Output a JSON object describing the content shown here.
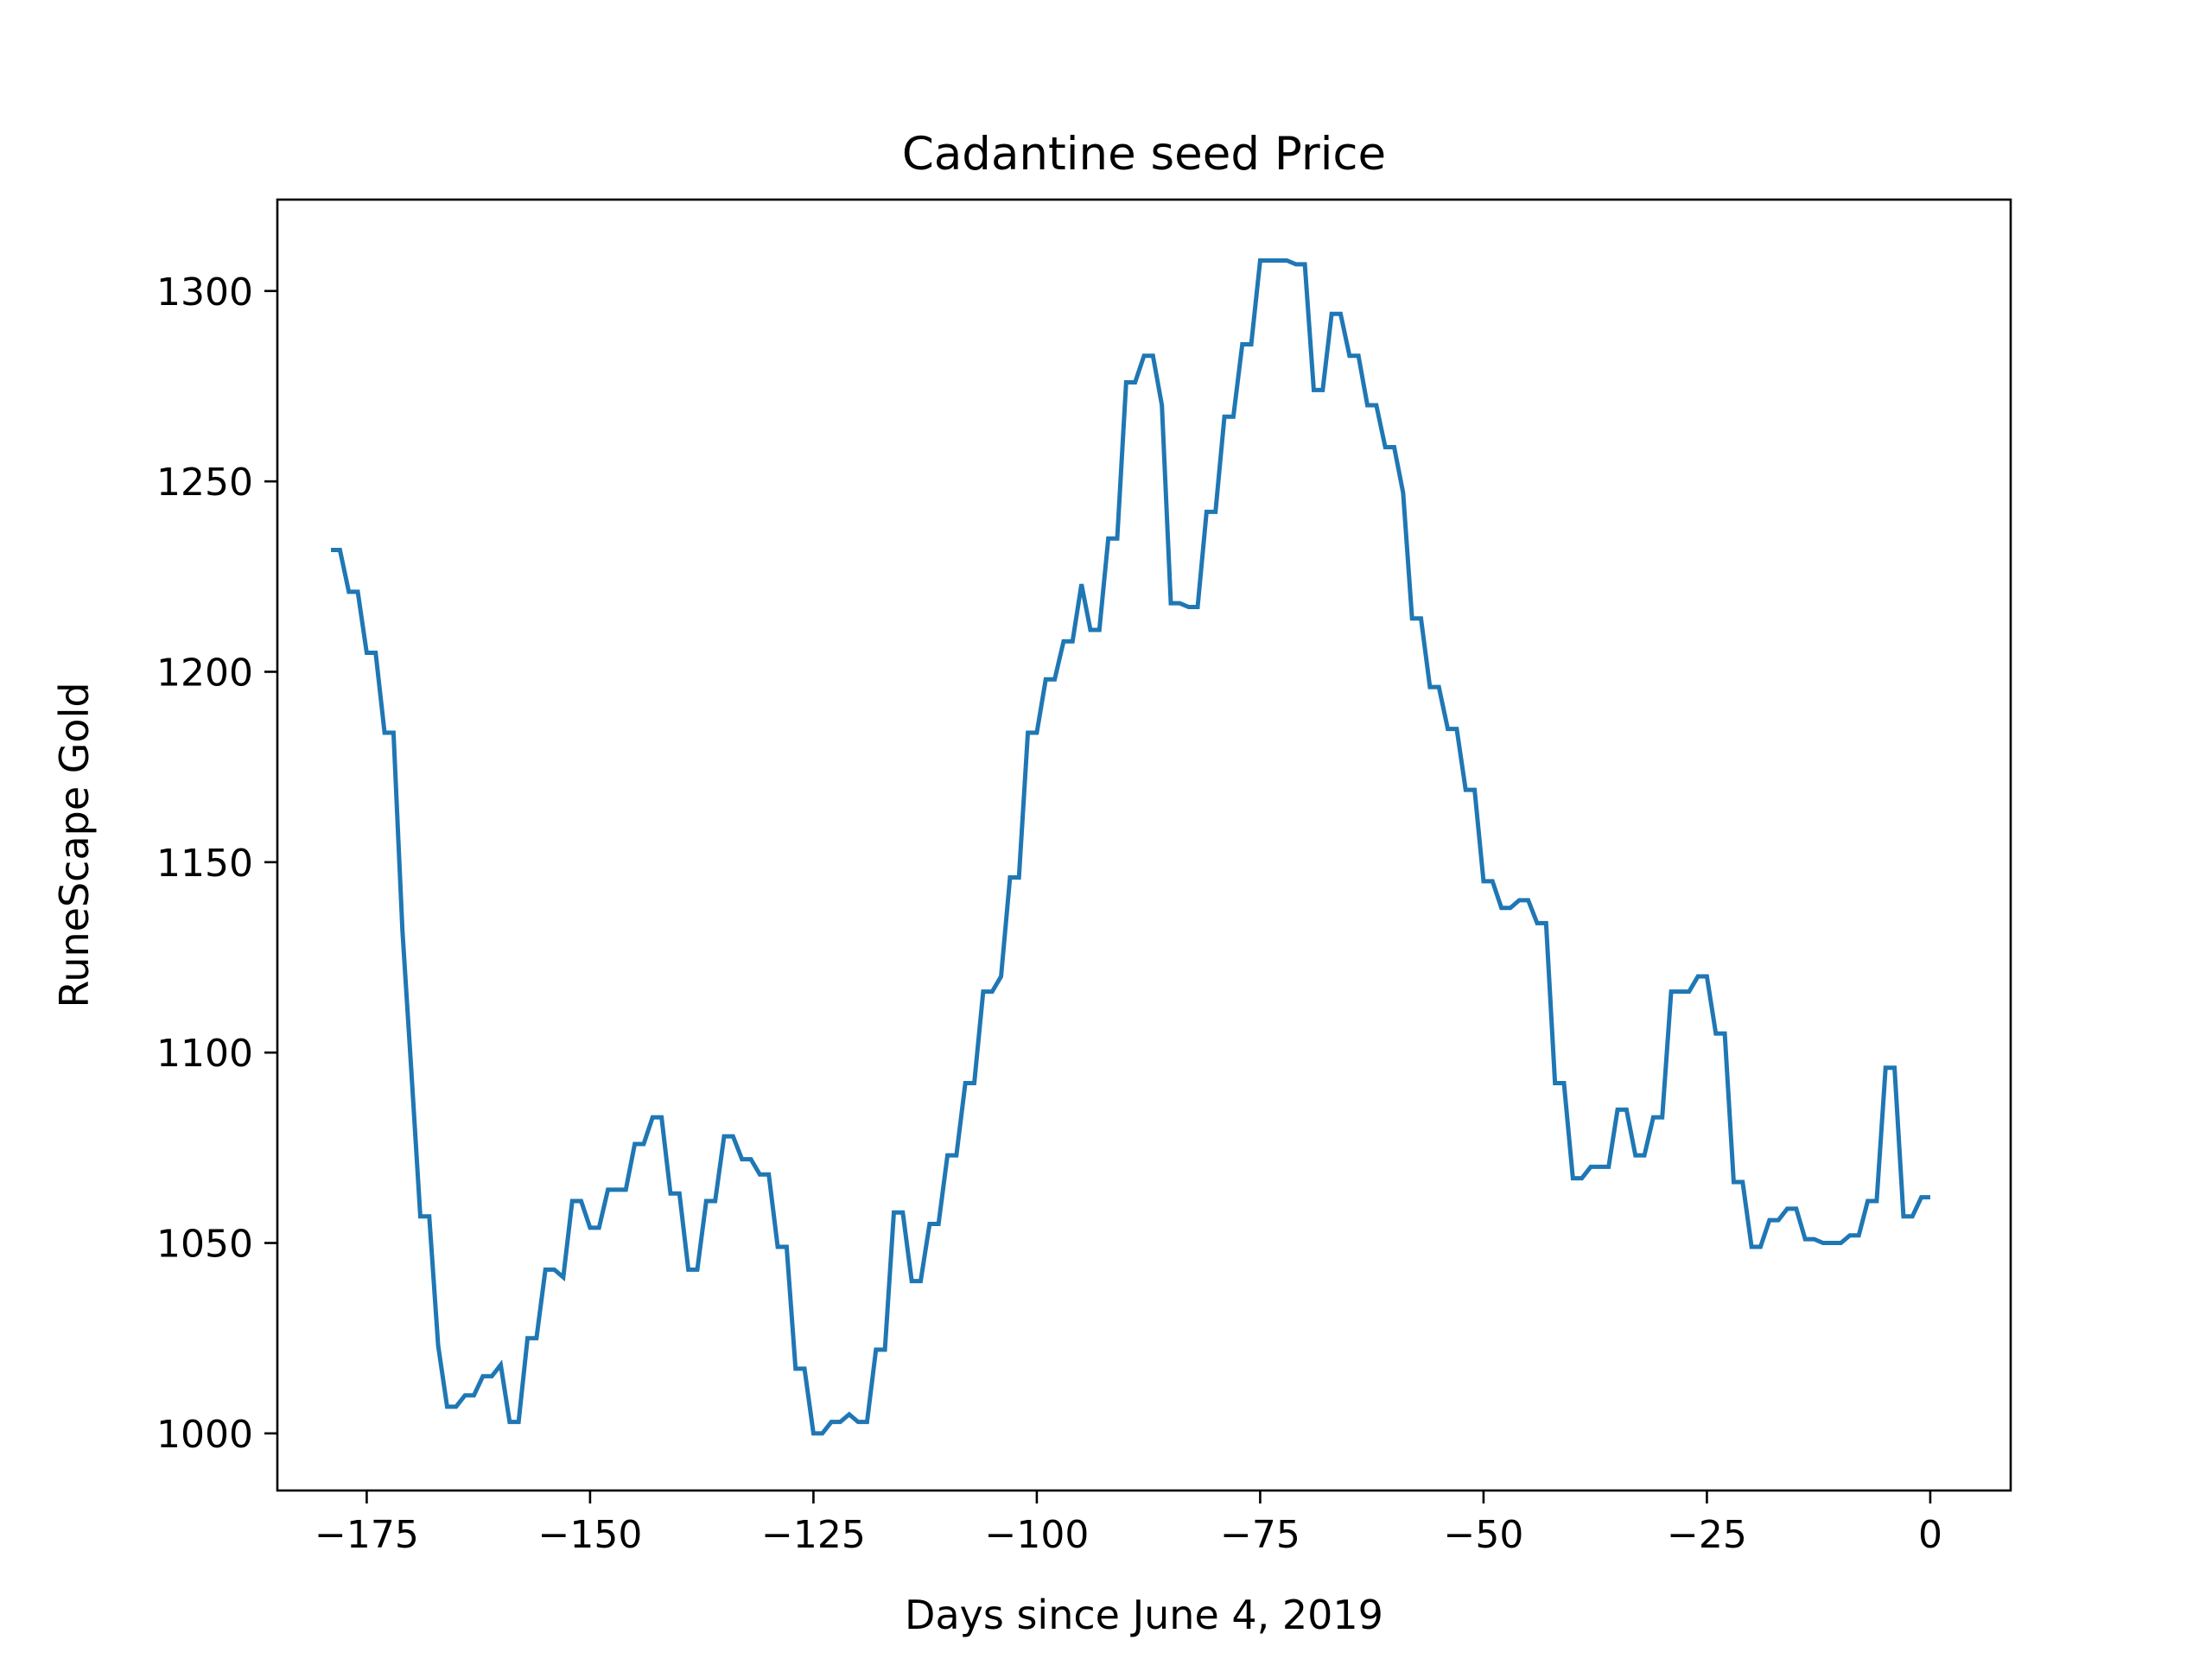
{
  "chart_data": {
    "type": "line",
    "title": "Cadantine seed Price",
    "xlabel": "Days since June 4, 2019",
    "ylabel": "RuneScape Gold",
    "xlim": [
      -185,
      9
    ],
    "ylim": [
      985,
      1324
    ],
    "x_ticks": [
      -175,
      -150,
      -125,
      -100,
      -75,
      -50,
      -25,
      0
    ],
    "x_tick_labels": [
      "−175",
      "−150",
      "−125",
      "−100",
      "−75",
      "−50",
      "−25",
      "0"
    ],
    "y_ticks": [
      1000,
      1050,
      1100,
      1150,
      1200,
      1250,
      1300
    ],
    "y_tick_labels": [
      "1000",
      "1050",
      "1100",
      "1150",
      "1200",
      "1250",
      "1300"
    ],
    "grid": false,
    "line_color": "#1f77b4",
    "series": [
      {
        "x": [
          -179,
          -178,
          -177,
          -176,
          -175,
          -174,
          -173,
          -172,
          -171,
          -170,
          -169,
          -168,
          -167,
          -166,
          -165,
          -164,
          -163,
          -162,
          -161,
          -160,
          -159,
          -158,
          -157,
          -156,
          -155,
          -154,
          -153,
          -152,
          -151,
          -150,
          -149,
          -148,
          -147,
          -146,
          -145,
          -144,
          -143,
          -142,
          -141,
          -140,
          -139,
          -138,
          -137,
          -136,
          -135,
          -134,
          -133,
          -132,
          -131,
          -130,
          -129,
          -128,
          -127,
          -126,
          -125,
          -124,
          -123,
          -122,
          -121,
          -120,
          -119,
          -118,
          -117,
          -116,
          -115,
          -114,
          -113,
          -112,
          -111,
          -110,
          -109,
          -108,
          -107,
          -106,
          -105,
          -104,
          -103,
          -102,
          -101,
          -100,
          -99,
          -98,
          -97,
          -96,
          -95,
          -94,
          -93,
          -92,
          -91,
          -90,
          -89,
          -88,
          -87,
          -86,
          -85,
          -84,
          -83,
          -82,
          -81,
          -80,
          -79,
          -78,
          -77,
          -76,
          -75,
          -74,
          -73,
          -72,
          -71,
          -70,
          -69,
          -68,
          -67,
          -66,
          -65,
          -64,
          -63,
          -62,
          -61,
          -60,
          -59,
          -58,
          -57,
          -56,
          -55,
          -54,
          -53,
          -52,
          -51,
          -50,
          -49,
          -48,
          -47,
          -46,
          -45,
          -44,
          -43,
          -42,
          -41,
          -40,
          -39,
          -38,
          -37,
          -36,
          -35,
          -34,
          -33,
          -32,
          -31,
          -30,
          -29,
          -28,
          -27,
          -26,
          -25,
          -24,
          -23,
          -22,
          -21,
          -20,
          -19,
          -18,
          -17,
          -16,
          -15,
          -14,
          -13,
          -12,
          -11,
          -10,
          -9,
          -8,
          -7,
          -6,
          -5,
          -4,
          -3,
          -2,
          -1,
          0
        ],
        "values": [
          1232,
          1232,
          1221,
          1221,
          1205,
          1205,
          1184,
          1184,
          1132,
          1095,
          1057,
          1057,
          1023,
          1007,
          1007,
          1010,
          1010,
          1015,
          1015,
          1018,
          1003,
          1003,
          1025,
          1025,
          1043,
          1043,
          1041,
          1061,
          1061,
          1054,
          1054,
          1064,
          1064,
          1064,
          1076,
          1076,
          1083,
          1083,
          1063,
          1063,
          1043,
          1043,
          1061,
          1061,
          1078,
          1078,
          1072,
          1072,
          1068,
          1068,
          1049,
          1049,
          1017,
          1017,
          1000,
          1000,
          1003,
          1003,
          1005,
          1003,
          1003,
          1022,
          1022,
          1058,
          1058,
          1040,
          1040,
          1055,
          1055,
          1073,
          1073,
          1092,
          1092,
          1116,
          1116,
          1120,
          1146,
          1146,
          1184,
          1184,
          1198,
          1198,
          1208,
          1208,
          1223,
          1211,
          1211,
          1235,
          1235,
          1276,
          1276,
          1283,
          1283,
          1270,
          1218,
          1218,
          1217,
          1217,
          1242,
          1242,
          1267,
          1267,
          1286,
          1286,
          1308,
          1308,
          1308,
          1308,
          1307,
          1307,
          1274,
          1274,
          1294,
          1294,
          1283,
          1283,
          1270,
          1270,
          1259,
          1259,
          1247,
          1214,
          1214,
          1196,
          1196,
          1185,
          1185,
          1169,
          1169,
          1145,
          1145,
          1138,
          1138,
          1140,
          1140,
          1134,
          1134,
          1092,
          1092,
          1067,
          1067,
          1070,
          1070,
          1070,
          1085,
          1085,
          1073,
          1073,
          1083,
          1083,
          1116,
          1116,
          1116,
          1120,
          1120,
          1105,
          1105,
          1066,
          1066,
          1049,
          1049,
          1056,
          1056,
          1059,
          1059,
          1051,
          1051,
          1050,
          1050,
          1050,
          1052,
          1052,
          1061,
          1061,
          1096,
          1096,
          1057,
          1057,
          1062,
          1062
        ]
      }
    ]
  }
}
